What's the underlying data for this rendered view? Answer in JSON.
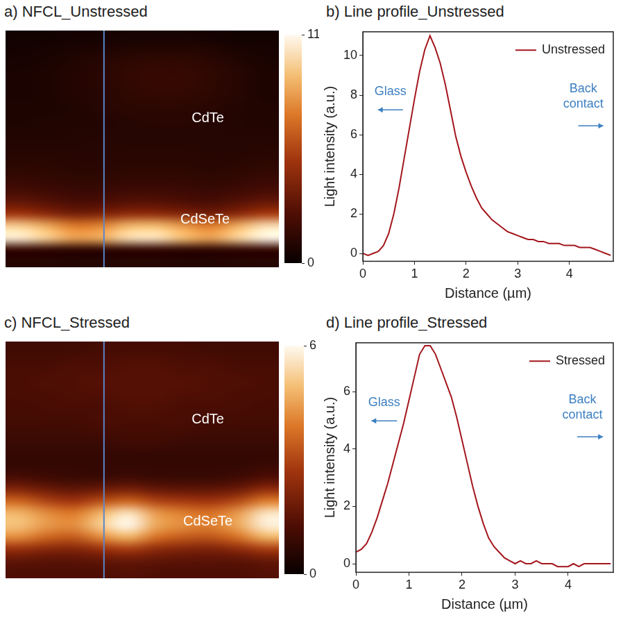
{
  "chart_data": [
    {
      "type": "heatmap",
      "title": "a) NFCL_Unstressed",
      "tick_labels": false,
      "annotations": [
        "CdTe",
        "CdSeTe"
      ],
      "colorbar_range": [
        0,
        11
      ],
      "colorbar_ticks": [
        0,
        11
      ],
      "cells": [
        [
          0.3,
          0.3,
          0.4,
          0.4,
          0.5,
          0.5,
          0.5,
          0.4,
          0.3,
          0.3
        ],
        [
          0.4,
          0.5,
          0.6,
          0.7,
          0.8,
          0.9,
          0.9,
          0.8,
          0.6,
          0.5
        ],
        [
          0.5,
          0.6,
          0.8,
          1.0,
          1.2,
          1.3,
          1.3,
          1.1,
          0.8,
          0.6
        ],
        [
          0.6,
          0.7,
          0.9,
          1.1,
          1.4,
          1.5,
          1.5,
          1.3,
          1.0,
          0.7
        ],
        [
          0.6,
          0.7,
          0.9,
          1.1,
          1.4,
          1.5,
          1.5,
          1.3,
          1.0,
          0.7
        ],
        [
          0.6,
          0.7,
          0.9,
          1.0,
          1.3,
          1.4,
          1.4,
          1.2,
          1.0,
          0.7
        ],
        [
          0.7,
          0.7,
          0.8,
          1.0,
          1.2,
          1.2,
          1.2,
          1.1,
          0.9,
          0.8
        ],
        [
          0.7,
          0.8,
          0.8,
          0.9,
          1.0,
          1.1,
          1.1,
          1.0,
          0.9,
          0.8
        ],
        [
          0.8,
          0.8,
          0.9,
          0.9,
          1.0,
          1.0,
          1.0,
          1.0,
          0.9,
          0.9
        ],
        [
          0.9,
          0.9,
          0.9,
          1.0,
          1.0,
          1.0,
          1.0,
          1.0,
          1.0,
          1.0
        ],
        [
          1.0,
          1.0,
          1.0,
          1.0,
          1.1,
          1.1,
          1.1,
          1.0,
          1.0,
          1.1
        ],
        [
          1.2,
          1.2,
          1.1,
          1.1,
          1.2,
          1.2,
          1.2,
          1.1,
          1.2,
          1.3
        ],
        [
          1.5,
          1.4,
          1.3,
          1.3,
          1.4,
          1.4,
          1.4,
          1.3,
          1.4,
          1.6
        ],
        [
          2.0,
          1.8,
          1.6,
          1.6,
          1.8,
          1.8,
          1.7,
          1.6,
          1.8,
          2.1
        ],
        [
          3.0,
          2.6,
          2.2,
          2.3,
          2.6,
          2.6,
          2.4,
          2.2,
          2.6,
          3.1
        ],
        [
          5.0,
          4.3,
          3.6,
          3.8,
          4.4,
          4.4,
          4.0,
          3.6,
          4.3,
          5.2
        ],
        [
          9.5,
          8.5,
          7.2,
          7.5,
          8.8,
          9.0,
          8.0,
          7.2,
          8.6,
          10.0
        ],
        [
          10.5,
          9.5,
          8.2,
          8.5,
          10.0,
          10.2,
          9.0,
          8.2,
          9.6,
          10.8
        ],
        [
          1.5,
          1.4,
          1.3,
          1.3,
          1.4,
          1.4,
          1.3,
          1.3,
          1.4,
          1.5
        ],
        [
          1.0,
          1.0,
          0.9,
          0.9,
          1.0,
          1.0,
          0.9,
          0.9,
          1.0,
          1.0
        ]
      ]
    },
    {
      "type": "line",
      "title": "b) Line profile_Unstressed",
      "x_label": "Distance (µm)",
      "y_label": "Light intensity (a.u.)",
      "annotations": [
        "Glass",
        "Back contact"
      ],
      "legend": "upper right",
      "grid": false,
      "xlim": [
        0,
        4.85
      ],
      "xticks": [
        0,
        1,
        2,
        3,
        4
      ],
      "ylim": [
        -0.4,
        11.2
      ],
      "yticks": [
        0,
        2,
        4,
        6,
        8,
        10
      ],
      "x": [
        0,
        0.1,
        0.2,
        0.3,
        0.4,
        0.5,
        0.6,
        0.7,
        0.8,
        0.9,
        1.0,
        1.1,
        1.2,
        1.3,
        1.4,
        1.5,
        1.6,
        1.7,
        1.8,
        1.9,
        2.0,
        2.1,
        2.2,
        2.3,
        2.4,
        2.5,
        2.6,
        2.7,
        2.8,
        2.9,
        3.0,
        3.1,
        3.2,
        3.3,
        3.4,
        3.5,
        3.6,
        3.7,
        3.8,
        3.9,
        4.0,
        4.1,
        4.2,
        4.3,
        4.4,
        4.5,
        4.6,
        4.7,
        4.8
      ],
      "series": [
        {
          "name": "Unstressed",
          "color": "#a3161c",
          "values": [
            0,
            -0.1,
            0,
            0.1,
            0.4,
            1.0,
            2.0,
            3.3,
            4.8,
            6.3,
            7.8,
            9.2,
            10.3,
            11.0,
            10.4,
            9.6,
            8.5,
            7.2,
            5.9,
            4.9,
            4.1,
            3.4,
            2.8,
            2.3,
            2.0,
            1.7,
            1.5,
            1.3,
            1.1,
            1.0,
            0.9,
            0.8,
            0.7,
            0.7,
            0.6,
            0.6,
            0.5,
            0.5,
            0.5,
            0.4,
            0.4,
            0.4,
            0.3,
            0.3,
            0.3,
            0.2,
            0.1,
            0.0,
            -0.1
          ]
        }
      ]
    },
    {
      "type": "heatmap",
      "title": "c) NFCL_Stressed",
      "tick_labels": false,
      "annotations": [
        "CdTe",
        "CdSeTe"
      ],
      "colorbar_range": [
        0,
        6
      ],
      "colorbar_ticks": [
        0,
        6
      ],
      "cells": [
        [
          1.0,
          1.0,
          1.0,
          1.1,
          1.1,
          1.1,
          1.1,
          1.0,
          1.0,
          1.0
        ],
        [
          1.1,
          1.1,
          1.2,
          1.2,
          1.3,
          1.3,
          1.2,
          1.2,
          1.1,
          1.1
        ],
        [
          1.2,
          1.2,
          1.3,
          1.3,
          1.4,
          1.4,
          1.3,
          1.3,
          1.2,
          1.2
        ],
        [
          1.2,
          1.3,
          1.3,
          1.4,
          1.4,
          1.4,
          1.4,
          1.3,
          1.3,
          1.2
        ],
        [
          1.2,
          1.2,
          1.3,
          1.3,
          1.4,
          1.4,
          1.3,
          1.3,
          1.2,
          1.2
        ],
        [
          1.1,
          1.2,
          1.2,
          1.2,
          1.3,
          1.3,
          1.2,
          1.2,
          1.2,
          1.1
        ],
        [
          1.1,
          1.1,
          1.1,
          1.2,
          1.2,
          1.2,
          1.2,
          1.1,
          1.1,
          1.1
        ],
        [
          1.0,
          1.0,
          1.0,
          1.1,
          1.1,
          1.1,
          1.1,
          1.0,
          1.0,
          1.0
        ],
        [
          0.9,
          0.9,
          0.9,
          0.9,
          1.0,
          1.0,
          0.9,
          0.9,
          0.9,
          0.9
        ],
        [
          0.8,
          0.8,
          0.8,
          0.8,
          0.8,
          0.8,
          0.8,
          0.8,
          0.8,
          0.8
        ],
        [
          0.8,
          0.8,
          0.8,
          0.8,
          0.8,
          0.8,
          0.8,
          0.8,
          0.8,
          0.9
        ],
        [
          1.2,
          1.0,
          0.9,
          0.9,
          1.0,
          0.9,
          0.9,
          0.9,
          1.0,
          1.3
        ],
        [
          2.2,
          1.8,
          1.6,
          1.8,
          2.0,
          1.7,
          1.6,
          1.6,
          1.8,
          2.4
        ],
        [
          3.6,
          3.0,
          2.7,
          3.2,
          3.6,
          3.0,
          2.8,
          2.7,
          3.1,
          4.0
        ],
        [
          4.8,
          4.2,
          3.9,
          4.8,
          5.6,
          4.4,
          4.0,
          3.8,
          4.4,
          5.6
        ],
        [
          5.0,
          4.4,
          4.2,
          5.2,
          6.0,
          4.6,
          4.2,
          4.0,
          4.6,
          5.8
        ],
        [
          4.2,
          3.6,
          3.4,
          4.2,
          4.8,
          3.8,
          3.4,
          3.3,
          3.8,
          4.8
        ],
        [
          2.6,
          2.3,
          2.2,
          2.6,
          2.9,
          2.4,
          2.2,
          2.1,
          2.4,
          2.9
        ],
        [
          1.6,
          1.5,
          1.5,
          1.6,
          1.7,
          1.6,
          1.5,
          1.5,
          1.5,
          1.7
        ],
        [
          1.3,
          1.3,
          1.3,
          1.3,
          1.4,
          1.3,
          1.3,
          1.3,
          1.3,
          1.4
        ]
      ]
    },
    {
      "type": "line",
      "title": "d) Line profile_Stressed",
      "x_label": "Distance (µm)",
      "y_label": "Light intensity (a.u.)",
      "annotations": [
        "Glass",
        "Back contact"
      ],
      "legend": "upper right",
      "grid": false,
      "xlim": [
        0,
        4.85
      ],
      "xticks": [
        0,
        1,
        2,
        3,
        4
      ],
      "ylim": [
        -0.3,
        7.7
      ],
      "yticks": [
        0,
        2,
        4,
        6
      ],
      "x": [
        0,
        0.1,
        0.2,
        0.3,
        0.4,
        0.5,
        0.6,
        0.7,
        0.8,
        0.9,
        1.0,
        1.1,
        1.2,
        1.3,
        1.4,
        1.5,
        1.6,
        1.7,
        1.8,
        1.9,
        2.0,
        2.1,
        2.2,
        2.3,
        2.4,
        2.5,
        2.6,
        2.7,
        2.8,
        2.9,
        3.0,
        3.1,
        3.2,
        3.3,
        3.4,
        3.5,
        3.6,
        3.7,
        3.8,
        3.9,
        4.0,
        4.1,
        4.2,
        4.3,
        4.4,
        4.5,
        4.6,
        4.7,
        4.8
      ],
      "series": [
        {
          "name": "Stressed",
          "color": "#a3161c",
          "values": [
            0.4,
            0.5,
            0.7,
            1.1,
            1.6,
            2.2,
            2.8,
            3.5,
            4.2,
            4.9,
            5.7,
            6.5,
            7.3,
            7.6,
            7.6,
            7.3,
            6.8,
            6.3,
            5.8,
            5.1,
            4.3,
            3.5,
            2.7,
            2.0,
            1.4,
            0.9,
            0.6,
            0.4,
            0.2,
            0.1,
            0.0,
            0.1,
            0.0,
            0.0,
            0.1,
            0.0,
            0.0,
            0.0,
            -0.1,
            -0.1,
            -0.1,
            0.0,
            -0.1,
            0.0,
            0.0,
            0.0,
            0.0,
            0.0,
            0.0
          ]
        }
      ]
    }
  ]
}
